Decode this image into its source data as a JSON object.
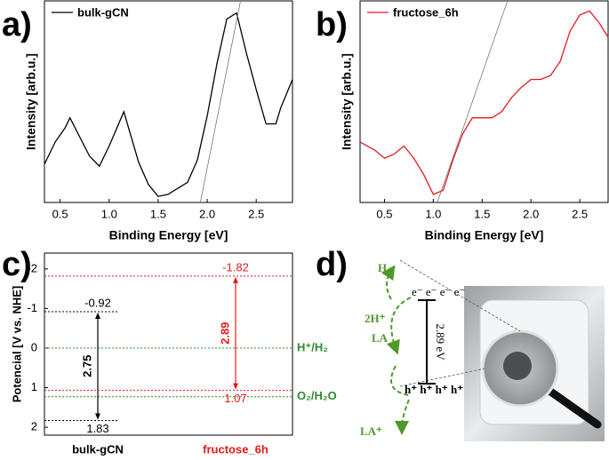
{
  "chart_data": [
    {
      "type": "line",
      "panel": "a)",
      "ylabel": "Intensity [arb.u.]",
      "xlabel": "Binding Energy [eV]",
      "xlim": [
        0.34,
        2.87
      ],
      "ylim": [
        0,
        100
      ],
      "xticks": [
        0.5,
        {
          "value": 1,
          "label": "1.0"
        },
        1.5,
        {
          "value": 2,
          "label": "2.0"
        },
        2.5
      ],
      "series": [
        {
          "name": "bulk-gCN",
          "color": "#000000",
          "x": [
            0.34,
            0.45,
            0.55,
            0.6,
            0.8,
            0.9,
            1.0,
            1.15,
            1.3,
            1.4,
            1.5,
            1.6,
            1.7,
            1.8,
            1.9,
            2.0,
            2.1,
            2.2,
            2.3,
            2.4,
            2.5,
            2.6,
            2.7,
            2.75,
            2.87
          ],
          "values": [
            19,
            30,
            37,
            42,
            23,
            18,
            28,
            45,
            20,
            9,
            3,
            4,
            7,
            10,
            21,
            43,
            69,
            91,
            94,
            74,
            56,
            39,
            39,
            47,
            61
          ]
        }
      ],
      "tangent": {
        "x": [
          1.93,
          2.34
        ],
        "values": [
          0,
          100
        ],
        "color": "#777777"
      }
    },
    {
      "type": "line",
      "panel": "b)",
      "ylabel": "Intensity [arb.u.]",
      "xlabel": "Binding Energy [eV]",
      "xlim": [
        0.25,
        2.79
      ],
      "ylim": [
        0,
        100
      ],
      "xticks": [
        0.5,
        {
          "value": 1,
          "label": "1.0"
        },
        1.5,
        {
          "value": 2,
          "label": "2.0"
        },
        2.5
      ],
      "series": [
        {
          "name": "fructose_6h",
          "color": "#e41a1c",
          "x": [
            0.25,
            0.4,
            0.5,
            0.6,
            0.7,
            0.8,
            0.9,
            1.0,
            1.1,
            1.2,
            1.3,
            1.4,
            1.5,
            1.6,
            1.7,
            1.8,
            1.9,
            2.0,
            2.1,
            2.2,
            2.3,
            2.4,
            2.5,
            2.6,
            2.7,
            2.79
          ],
          "values": [
            30,
            26,
            22,
            24,
            28,
            22,
            14,
            4,
            6,
            21,
            34,
            42,
            42,
            42,
            45,
            52,
            57,
            61,
            61,
            63,
            70,
            85,
            93,
            95,
            89,
            82
          ]
        }
      ],
      "tangent": {
        "x": [
          1.04,
          1.76
        ],
        "values": [
          0,
          100
        ],
        "color": "#777777"
      }
    },
    {
      "type": "energy_levels",
      "panel": "c)",
      "ylabel": "Potencial [V vs. NHE]",
      "ylim": [
        2.2,
        -2.4
      ],
      "yticks": [
        -2,
        -1,
        0,
        1,
        2
      ],
      "categories": [
        "bulk-gCN",
        "fructose_6h"
      ],
      "colors": [
        "#000000",
        "#e41a1c"
      ],
      "cb": [
        -0.92,
        -1.82
      ],
      "vb": [
        1.83,
        1.07
      ],
      "gaps": [
        2.75,
        2.89
      ],
      "references": [
        {
          "label": "H⁺/H₂",
          "value": 0
        },
        {
          "label": "O₂/H₂O",
          "value": 1.23
        }
      ],
      "reference_color": "#2e8b2e"
    }
  ],
  "scheme": {
    "panel": "d)",
    "h2": "H₂",
    "proton": "2H⁺",
    "la": "LA",
    "la_plus": "LA⁺",
    "electrons": "e⁻ e⁻ e⁻ e⁻",
    "holes": "h⁺ h⁺ h⁺ h⁺",
    "gap": "2.89 eV"
  }
}
